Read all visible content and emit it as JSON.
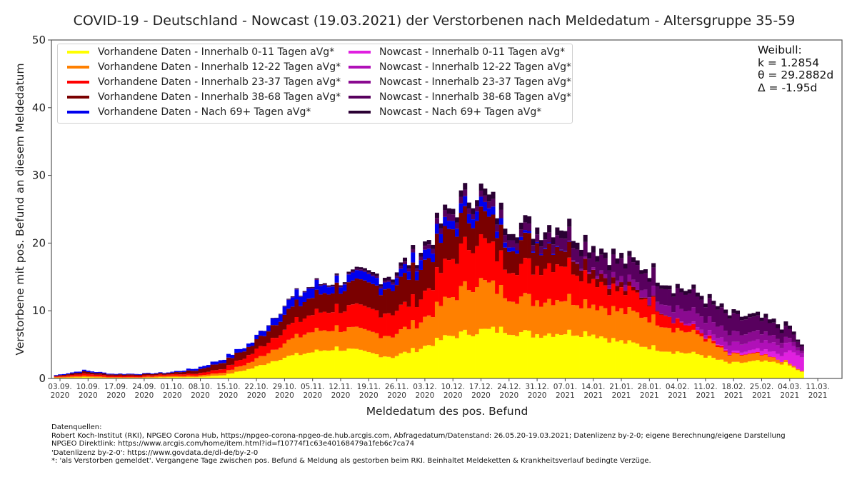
{
  "chart_data": {
    "type": "bar",
    "stacked": true,
    "title": "COVID-19 - Deutschland - Nowcast (19.03.2021) der Verstorbenen nach Meldedatum - Altersgruppe 35-59",
    "xlabel": "Meldedatum des pos. Befund",
    "ylabel": "Verstorbene mit pos. Befund an diesem Meldedatum",
    "ylim": [
      0,
      50
    ],
    "yticks": [
      0,
      10,
      20,
      30,
      40,
      50
    ],
    "grid": false,
    "legend_position": "top-left",
    "x_start": "03.09.2020",
    "x_ticks": [
      {
        "l1": "03.09.",
        "l2": "2020"
      },
      {
        "l1": "10.09.",
        "l2": "2020"
      },
      {
        "l1": "17.09.",
        "l2": "2020"
      },
      {
        "l1": "24.09.",
        "l2": "2020"
      },
      {
        "l1": "01.10.",
        "l2": "2020"
      },
      {
        "l1": "08.10.",
        "l2": "2020"
      },
      {
        "l1": "15.10.",
        "l2": "2020"
      },
      {
        "l1": "22.10.",
        "l2": "2020"
      },
      {
        "l1": "29.10.",
        "l2": "2020"
      },
      {
        "l1": "05.11.",
        "l2": "2020"
      },
      {
        "l1": "12.11.",
        "l2": "2020"
      },
      {
        "l1": "19.11.",
        "l2": "2020"
      },
      {
        "l1": "26.11.",
        "l2": "2020"
      },
      {
        "l1": "03.12.",
        "l2": "2020"
      },
      {
        "l1": "10.12.",
        "l2": "2020"
      },
      {
        "l1": "17.12.",
        "l2": "2020"
      },
      {
        "l1": "24.12.",
        "l2": "2020"
      },
      {
        "l1": "31.12.",
        "l2": "2020"
      },
      {
        "l1": "07.01.",
        "l2": "2021"
      },
      {
        "l1": "14.01.",
        "l2": "2021"
      },
      {
        "l1": "21.01.",
        "l2": "2021"
      },
      {
        "l1": "28.01.",
        "l2": "2021"
      },
      {
        "l1": "04.02.",
        "l2": "2021"
      },
      {
        "l1": "11.02.",
        "l2": "2021"
      },
      {
        "l1": "18.02.",
        "l2": "2021"
      },
      {
        "l1": "25.02.",
        "l2": "2021"
      },
      {
        "l1": "04.03.",
        "l2": "2021"
      },
      {
        "l1": "11.03.",
        "l2": "2021"
      }
    ],
    "weekly_totals_note": "values sampled weekly (at tick dates), stacked series in data units",
    "series": [
      {
        "name": "Vorhandene Daten - Innerhalb 0-11 Tagen aVg*",
        "color": "#ffff00",
        "values": [
          0.1,
          0.2,
          0.1,
          0.1,
          0.2,
          0.2,
          0.5,
          1.5,
          3.0,
          3.8,
          4.5,
          3.8,
          3.2,
          4.5,
          6.2,
          7.0,
          7.2,
          6.5,
          6.8,
          6.8,
          5.5,
          4.8,
          4.0,
          3.5,
          2.2,
          2.5,
          2.2,
          0
        ]
      },
      {
        "name": "Vorhandene Daten - Innerhalb 12-22 Tagen aVg*",
        "color": "#ff8000",
        "values": [
          0.1,
          0.2,
          0.1,
          0.1,
          0.2,
          0.2,
          0.4,
          1.0,
          2.0,
          3.0,
          3.0,
          3.0,
          3.2,
          4.0,
          5.5,
          7.5,
          5.5,
          5.0,
          5.2,
          4.5,
          4.5,
          4.5,
          3.5,
          2.8,
          1.2,
          1.0,
          0.3,
          0
        ]
      },
      {
        "name": "Vorhandene Daten - Innerhalb 23-37 Tagen aVg*",
        "color": "#ff0000",
        "values": [
          0.1,
          0.3,
          0.2,
          0.2,
          0.2,
          0.3,
          0.6,
          1.2,
          2.0,
          2.5,
          3.0,
          3.2,
          3.5,
          3.5,
          5.5,
          6.5,
          4.5,
          5.0,
          5.5,
          4.0,
          3.0,
          2.8,
          1.5,
          0.5,
          0.1,
          0.1,
          0,
          0
        ]
      },
      {
        "name": "Vorhandene Daten - Innerhalb 38-68 Tagen aVg*",
        "color": "#7a0000",
        "values": [
          0.1,
          0.3,
          0.2,
          0.2,
          0.2,
          0.5,
          1.0,
          1.2,
          2.2,
          2.5,
          3.0,
          3.5,
          3.8,
          4.5,
          4.5,
          4.0,
          3.5,
          3.5,
          2.5,
          1.5,
          0.8,
          0.2,
          0,
          0,
          0,
          0,
          0,
          0
        ]
      },
      {
        "name": "Vorhandene Daten - Nach 69+ Tagen aVg*",
        "color": "#0000ee",
        "values": [
          0.1,
          0.2,
          0.1,
          0.1,
          0.1,
          0.3,
          0.5,
          0.5,
          1.2,
          1.5,
          1.0,
          1.2,
          1.0,
          1.5,
          1.2,
          1.5,
          0.8,
          0.2,
          0.1,
          0,
          0,
          0,
          0,
          0,
          0,
          0,
          0,
          0
        ]
      },
      {
        "name": "Nowcast - Innerhalb 0-11 Tagen aVg*",
        "color": "#e020e0",
        "values": [
          0,
          0,
          0,
          0,
          0,
          0,
          0,
          0,
          0,
          0,
          0,
          0,
          0,
          0,
          0,
          0,
          0,
          0,
          0,
          0,
          0,
          0,
          0,
          0,
          0.2,
          0.5,
          1.0,
          2.0
        ]
      },
      {
        "name": "Nowcast - Innerhalb 12-22 Tagen aVg*",
        "color": "#b010b8",
        "values": [
          0,
          0,
          0,
          0,
          0,
          0,
          0,
          0,
          0,
          0,
          0,
          0,
          0,
          0,
          0,
          0,
          0,
          0,
          0,
          0,
          0,
          0,
          0,
          0.5,
          1.2,
          1.2,
          1.3,
          0
        ]
      },
      {
        "name": "Nowcast - Innerhalb 23-37 Tagen aVg*",
        "color": "#8a0a90",
        "values": [
          0,
          0,
          0,
          0,
          0,
          0,
          0,
          0,
          0,
          0,
          0,
          0,
          0,
          0,
          0,
          0,
          0,
          0,
          0,
          0.3,
          0.8,
          1.2,
          1.8,
          2.0,
          1.5,
          1.3,
          0.8,
          0
        ]
      },
      {
        "name": "Nowcast - Innerhalb 38-68 Tagen aVg*",
        "color": "#58005e",
        "values": [
          0,
          0,
          0,
          0,
          0,
          0,
          0,
          0,
          0,
          0.1,
          0.1,
          0.2,
          0.3,
          0.5,
          1.0,
          0.8,
          1.2,
          1.0,
          1.8,
          2.2,
          2.5,
          2.5,
          2.5,
          2.5,
          2.5,
          2.0,
          1.5,
          0
        ]
      },
      {
        "name": "Nowcast - Nach 69+ Tagen aVg*",
        "color": "#2a0033",
        "values": [
          0,
          0,
          0,
          0,
          0,
          0,
          0,
          0,
          0.1,
          0.1,
          0.2,
          0.3,
          0.5,
          0.6,
          0.8,
          1.0,
          1.0,
          1.0,
          1.2,
          1.0,
          0.8,
          0.6,
          0.6,
          0.6,
          0.5,
          0.5,
          0.6,
          0
        ]
      }
    ],
    "annotation": {
      "title": "Weibull:",
      "k": "k = 1.2854",
      "theta": "θ = 29.2882d",
      "delta": "Δ = -1.95d"
    }
  },
  "footer": {
    "line1": "Datenquellen:",
    "line2": "Robert Koch-Institut (RKI), NPGEO Corona Hub, https://npgeo-corona-npgeo-de.hub.arcgis.com, Abfragedatum/Datenstand: 26.05.20-19.03.2021; Datenlizenz by-2-0; eigene Berechnung/eigene Darstellung",
    "line3": "NPGEO Direktlink: https://www.arcgis.com/home/item.html?id=f10774f1c63e40168479a1feb6c7ca74",
    "line4": "'Datenlizenz by-2-0': https://www.govdata.de/dl-de/by-2-0",
    "line5": "*: 'als Verstorben gemeldet'. Vergangene Tage zwischen pos. Befund & Meldung als gestorben beim RKI. Beinhaltet Meldeketten & Krankheitsverlauf bedingte Verzüge."
  }
}
